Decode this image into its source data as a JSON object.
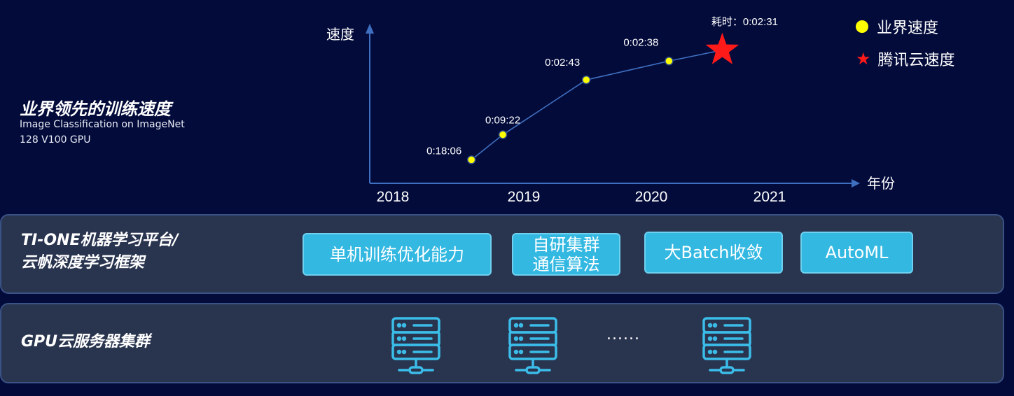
{
  "heading": {
    "title": "业界领先的训练速度",
    "subtitle_1": "Image Classification on ImageNet",
    "subtitle_2": "128 V100 GPU"
  },
  "chart_data": {
    "type": "line",
    "ylabel": "速度",
    "xlabel": "年份",
    "x_ticks": [
      "2018",
      "2019",
      "2020",
      "2021"
    ],
    "series": [
      {
        "name": "业界速度",
        "marker": "circle",
        "color": "#ffff00",
        "points": [
          {
            "x": 2018.6,
            "speed_level": 0.15,
            "label": "0:18:06"
          },
          {
            "x": 2018.84,
            "speed_level": 0.31,
            "label": "0:09:22"
          },
          {
            "x": 2019.49,
            "speed_level": 0.66,
            "label": "0:02:43"
          },
          {
            "x": 2020.15,
            "speed_level": 0.78,
            "label": "0:02:38"
          }
        ]
      },
      {
        "name": "腾讯云速度",
        "marker": "star",
        "color": "#ff1a1a",
        "points": [
          {
            "x": 2020.6,
            "speed_level": 0.85,
            "label": "耗时：0:02:31"
          }
        ]
      }
    ],
    "line_color": "#3f6fc0",
    "legend": "top-right"
  },
  "platform": {
    "label_1": "TI-ONE机器学习平台/",
    "label_2": "云帆深度学习框架",
    "buttons": [
      "单机训练优化能力",
      "自研集群\n通信算法",
      "大Batch收敛",
      "AutoML"
    ]
  },
  "cluster": {
    "label": "GPU云服务器集群",
    "ellipsis": "......"
  }
}
